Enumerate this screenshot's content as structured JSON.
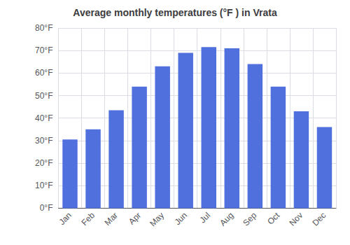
{
  "chart_data": {
    "type": "bar",
    "title": "Average monthly temperatures (°F ) in Vrata",
    "categories": [
      "Jan",
      "Feb",
      "Mar",
      "Apr",
      "May",
      "Jun",
      "Jul",
      "Aug",
      "Sep",
      "Oct",
      "Nov",
      "Dec"
    ],
    "values": [
      30.5,
      35,
      43.5,
      54,
      63,
      69,
      71.5,
      71,
      64,
      54,
      43,
      36
    ],
    "ylim": [
      0,
      80
    ],
    "yticks": [
      {
        "value": 0,
        "label": "0°F"
      },
      {
        "value": 10,
        "label": "10°F"
      },
      {
        "value": 20,
        "label": "20°F"
      },
      {
        "value": 30,
        "label": "30°F"
      },
      {
        "value": 40,
        "label": "40°F"
      },
      {
        "value": 50,
        "label": "50°F"
      },
      {
        "value": 60,
        "label": "60°F"
      },
      {
        "value": 70,
        "label": "70°F"
      },
      {
        "value": 80,
        "label": "80°F"
      }
    ],
    "grid": true
  }
}
